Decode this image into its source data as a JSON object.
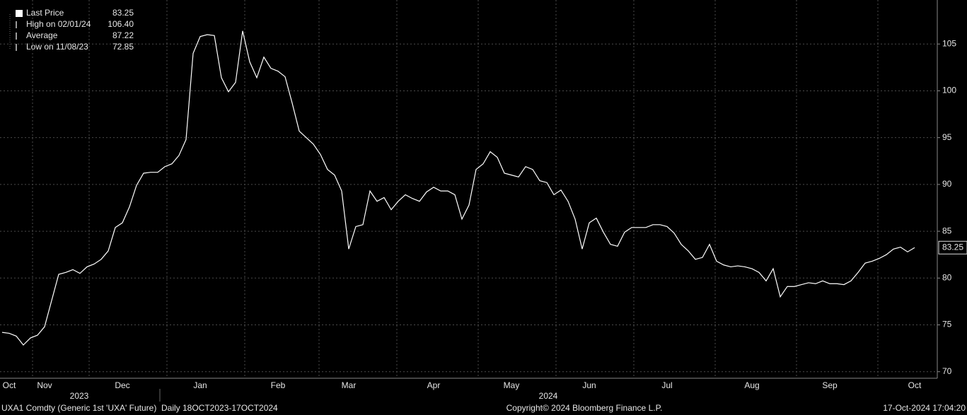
{
  "chart_data": {
    "type": "line",
    "legend": [
      {
        "label": "Last Price",
        "value": "83.25"
      },
      {
        "label": "High on 02/01/24",
        "value": "106.40"
      },
      {
        "label": "Average",
        "value": "87.22"
      },
      {
        "label": "Low on 11/08/23",
        "value": "72.85"
      }
    ],
    "categories": [
      null,
      "Oct",
      null,
      null,
      null,
      null,
      "Nov",
      null,
      null,
      null,
      null,
      null,
      null,
      null,
      null,
      null,
      null,
      "Dec",
      null,
      null,
      null,
      null,
      null,
      null,
      null,
      null,
      null,
      null,
      "Jan",
      null,
      null,
      null,
      null,
      null,
      null,
      null,
      null,
      null,
      null,
      "Feb",
      null,
      null,
      null,
      null,
      null,
      null,
      null,
      null,
      null,
      "Mar",
      null,
      null,
      null,
      null,
      null,
      null,
      null,
      null,
      null,
      null,
      null,
      "Apr",
      null,
      null,
      null,
      null,
      null,
      null,
      null,
      null,
      null,
      null,
      "May",
      null,
      null,
      null,
      null,
      null,
      null,
      null,
      null,
      null,
      null,
      "Jun",
      null,
      null,
      null,
      null,
      null,
      null,
      null,
      null,
      null,
      null,
      "Jul",
      null,
      null,
      null,
      null,
      null,
      null,
      null,
      null,
      null,
      null,
      null,
      "Aug",
      null,
      null,
      null,
      null,
      null,
      null,
      null,
      null,
      null,
      null,
      "Sep",
      null,
      null,
      null,
      null,
      null,
      null,
      null,
      null,
      null,
      null,
      null,
      "Oct"
    ],
    "series": [
      {
        "name": "Last Price",
        "color": "#ffffff",
        "values": [
          74.2,
          74.1,
          73.8,
          72.85,
          73.6,
          73.9,
          74.8,
          77.6,
          80.4,
          80.6,
          80.9,
          80.5,
          81.2,
          81.5,
          82.0,
          82.9,
          85.4,
          85.9,
          87.6,
          89.9,
          91.2,
          91.3,
          91.3,
          91.9,
          92.2,
          93.1,
          94.8,
          104.0,
          105.8,
          106.0,
          105.9,
          101.4,
          99.9,
          100.9,
          106.4,
          103.1,
          101.4,
          103.6,
          102.4,
          102.1,
          101.5,
          98.7,
          95.7,
          95.0,
          94.3,
          93.2,
          91.6,
          91.0,
          89.3,
          83.1,
          85.5,
          85.7,
          89.3,
          88.2,
          88.6,
          87.3,
          88.2,
          88.9,
          88.5,
          88.2,
          89.2,
          89.7,
          89.3,
          89.3,
          88.9,
          86.3,
          87.8,
          91.6,
          92.2,
          93.5,
          92.9,
          91.2,
          91.0,
          90.8,
          91.9,
          91.6,
          90.4,
          90.2,
          88.9,
          89.4,
          88.2,
          86.3,
          83.1,
          85.9,
          86.4,
          84.9,
          83.6,
          83.4,
          84.9,
          85.4,
          85.4,
          85.4,
          85.7,
          85.7,
          85.5,
          84.8,
          83.6,
          82.9,
          82.0,
          82.2,
          83.6,
          81.8,
          81.4,
          81.2,
          81.3,
          81.2,
          81.0,
          80.6,
          79.7,
          81.0,
          78.0,
          79.1,
          79.1,
          79.3,
          79.5,
          79.4,
          79.7,
          79.4,
          79.4,
          79.3,
          79.7,
          80.6,
          81.6,
          81.8,
          82.1,
          82.5,
          83.1,
          83.3,
          82.8,
          83.25
        ]
      }
    ],
    "year_labels": [
      "2023",
      "2024"
    ],
    "ylim": [
      69.3,
      109.7
    ],
    "yticks": [
      70,
      75,
      80,
      85,
      90,
      95,
      100,
      105
    ],
    "grid": true,
    "footer": {
      "left": "UXA1 Comdty (Generic 1st 'UXA' Future)  Daily 18OCT2023-17OCT2024",
      "center": "Copyright© 2024 Bloomberg Finance L.P.",
      "right": "17-Oct-2024 17:04:20"
    }
  }
}
